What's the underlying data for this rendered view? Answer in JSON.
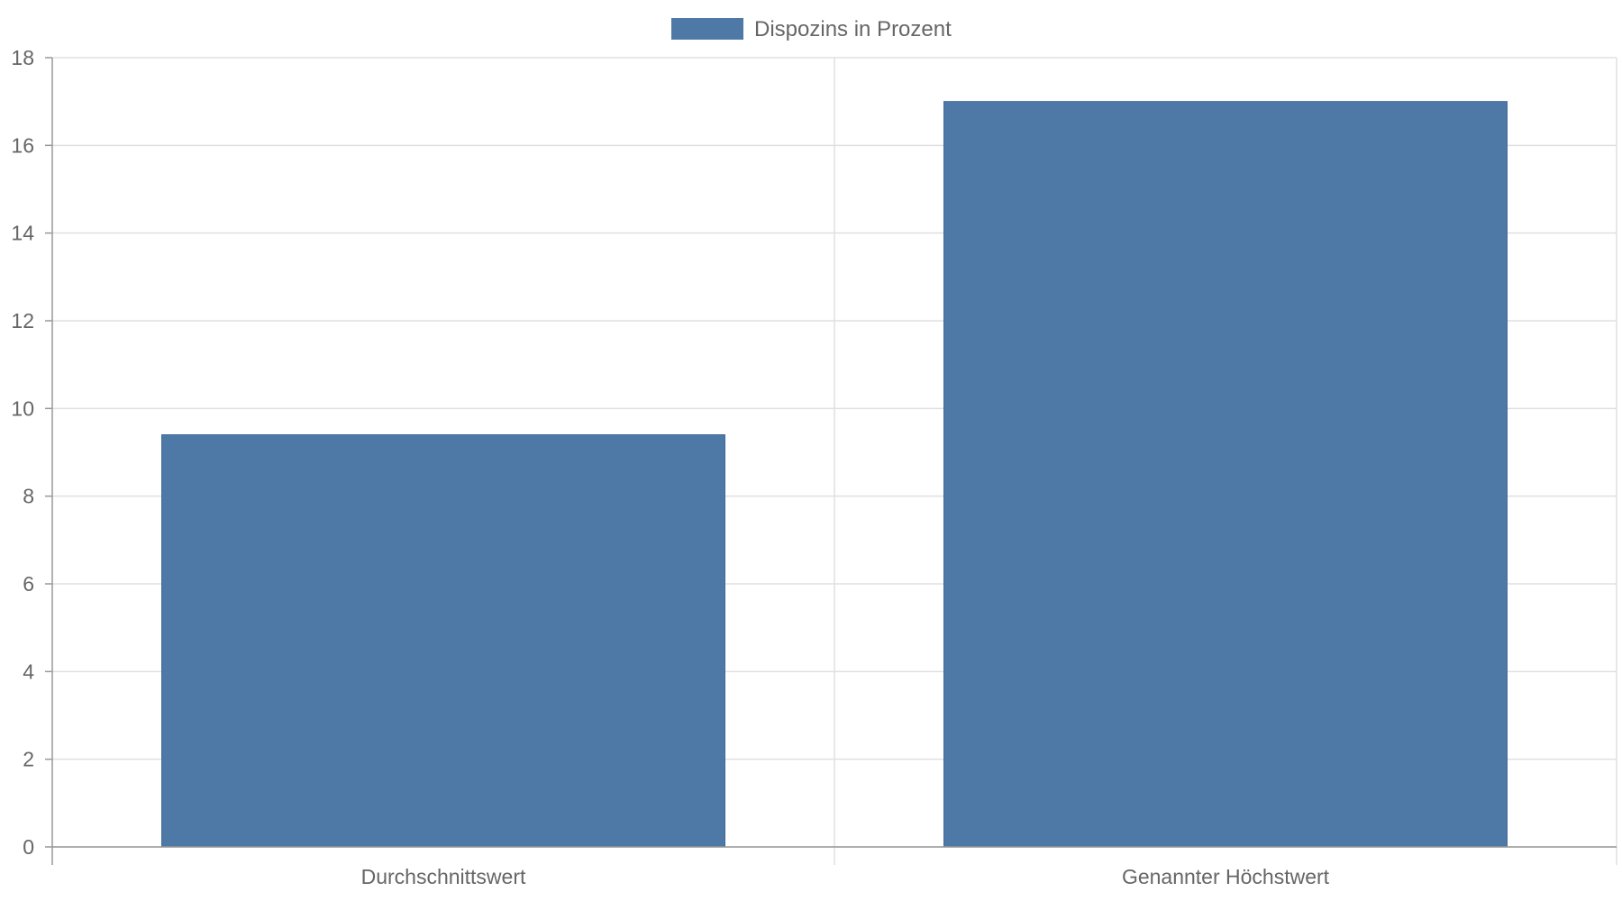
{
  "chart_data": {
    "type": "bar",
    "categories": [
      "Durchschnittswert",
      "Genannter Höchstwert"
    ],
    "series": [
      {
        "name": "Dispozins in Prozent",
        "values": [
          9.4,
          17
        ],
        "color": "#4e78a5"
      }
    ],
    "ylim": [
      0,
      18
    ],
    "yticks": [
      "0",
      "2",
      "4",
      "6",
      "8",
      "10",
      "12",
      "14",
      "16",
      "18"
    ],
    "grid": true,
    "legend_position": "top-center"
  },
  "colors": {
    "bar": "#4e78a5",
    "grid": "#e0e0e0",
    "axis": "#999999",
    "text": "#666666"
  }
}
